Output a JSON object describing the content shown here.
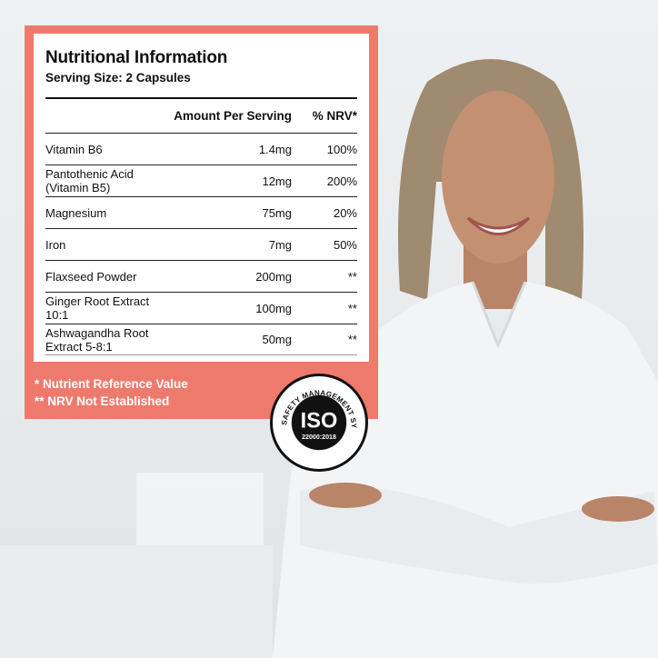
{
  "label": {
    "title": "Nutritional Information",
    "serving_size": "Serving Size: 2 Capsules",
    "headers": {
      "amount": "Amount Per Serving",
      "nrv": "% NRV*"
    },
    "rows": [
      {
        "name": "Vitamin B6",
        "amount": "1.4mg",
        "nrv": "100%"
      },
      {
        "name": "Pantothenic Acid (Vitamin B5)",
        "amount": "12mg",
        "nrv": "200%"
      },
      {
        "name": "Magnesium",
        "amount": "75mg",
        "nrv": "20%"
      },
      {
        "name": "Iron",
        "amount": "7mg",
        "nrv": "50%"
      },
      {
        "name": "Flaxseed Powder",
        "amount": "200mg",
        "nrv": "**"
      },
      {
        "name": "Ginger Root Extract 10:1",
        "amount": "100mg",
        "nrv": "**"
      },
      {
        "name": "Ashwagandha Root Extract 5-8:1",
        "amount": "50mg",
        "nrv": "**"
      }
    ],
    "footnotes": [
      "* Nutrient Reference Value",
      "** NRV Not Established"
    ]
  },
  "badge": {
    "ring_text": "FOOD SAFETY MANAGEMENT SYSTEM",
    "main": "ISO",
    "sub": "22000:2018"
  },
  "colors": {
    "accent": "#ee7a6e",
    "text": "#111111"
  }
}
